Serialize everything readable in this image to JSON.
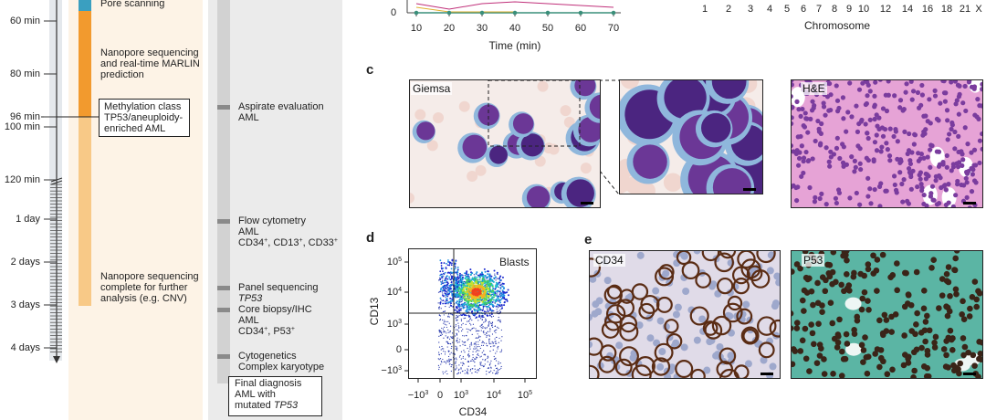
{
  "panel_labels": {
    "c": "c",
    "d": "d",
    "e": "e"
  },
  "timeline": {
    "ticks": [
      "60 min",
      "80 min",
      "96 min",
      "100 min",
      "120 min",
      "1 day",
      "2 days",
      "3 days",
      "4 days"
    ],
    "events": [
      [
        [
          {
            "text": "Pore scanning"
          }
        ]
      ],
      [
        [
          {
            "text": "Nanopore sequencing"
          }
        ],
        [
          {
            "text": "and real-time MARLIN"
          }
        ],
        [
          {
            "text": "prediction"
          }
        ]
      ],
      [
        [
          {
            "text": "Nanopore sequencing"
          }
        ],
        [
          {
            "text": "complete for further"
          }
        ],
        [
          {
            "text": "analysis (e.g. CNV)"
          }
        ]
      ]
    ],
    "result": [
      [
        {
          "text": "Methylation class"
        }
      ],
      [
        {
          "text": "TP53/aneuploidy-"
        }
      ],
      [
        {
          "text": "enriched AML"
        }
      ]
    ]
  },
  "clinical": {
    "steps": [
      [
        [
          {
            "text": "Aspirate evaluation"
          }
        ],
        [
          {
            "text": "AML"
          }
        ]
      ],
      [
        [
          {
            "text": "Flow cytometry"
          }
        ],
        [
          {
            "text": "AML"
          }
        ],
        [
          {
            "text": "CD34"
          },
          {
            "sup": "+"
          },
          {
            "text": ", CD13"
          },
          {
            "sup": "+"
          },
          {
            "text": ", CD33"
          },
          {
            "sup": "+"
          }
        ]
      ],
      [
        [
          {
            "text": "Panel sequencing"
          }
        ],
        [
          {
            "em": "TP53"
          }
        ]
      ],
      [
        [
          {
            "text": "Core biopsy/IHC"
          }
        ],
        [
          {
            "text": "AML"
          }
        ],
        [
          {
            "text": "CD34"
          },
          {
            "sup": "+"
          },
          {
            "text": ", P53"
          },
          {
            "sup": "+"
          }
        ]
      ],
      [
        [
          {
            "text": "Cytogenetics"
          }
        ],
        [
          {
            "text": "Complex karyotype"
          }
        ]
      ]
    ],
    "final": [
      [
        {
          "text": "Final diagnosis"
        }
      ],
      [
        {
          "text": "AML with"
        }
      ],
      [
        {
          "text": "mutated "
        },
        {
          "em": "TP53"
        }
      ]
    ]
  },
  "time_plot": {
    "y_tick": "0",
    "x_ticks": [
      "10",
      "20",
      "30",
      "40",
      "50",
      "60",
      "70"
    ],
    "x_label": "Time (min)"
  },
  "chromosome_axis": {
    "ticks": [
      "1",
      "2",
      "3",
      "4",
      "5",
      "6",
      "7",
      "8",
      "9",
      "10",
      "12",
      "14",
      "16",
      "18",
      "21",
      "X"
    ],
    "label": "Chromosome"
  },
  "panel_c": {
    "images": [
      "Giemsa",
      "H&E"
    ]
  },
  "panel_d": {
    "gate": "Blasts",
    "y_label": "CD13",
    "x_label": "CD34",
    "y_ticks": [
      [
        {
          "text": "10"
        },
        {
          "sup": "5"
        }
      ],
      [
        {
          "text": "10"
        },
        {
          "sup": "4"
        }
      ],
      [
        {
          "text": "10"
        },
        {
          "sup": "3"
        }
      ],
      [
        {
          "text": "0"
        }
      ],
      [
        {
          "text": "−10"
        },
        {
          "sup": "3"
        }
      ]
    ],
    "x_ticks": [
      [
        {
          "text": "−10"
        },
        {
          "sup": "3"
        }
      ],
      [
        {
          "text": "0"
        }
      ],
      [
        {
          "text": "10"
        },
        {
          "sup": "3"
        }
      ],
      [
        {
          "text": "10"
        },
        {
          "sup": "4"
        }
      ],
      [
        {
          "text": "10"
        },
        {
          "sup": "5"
        }
      ]
    ]
  },
  "panel_e": {
    "images": [
      "CD34",
      "P53"
    ]
  }
}
